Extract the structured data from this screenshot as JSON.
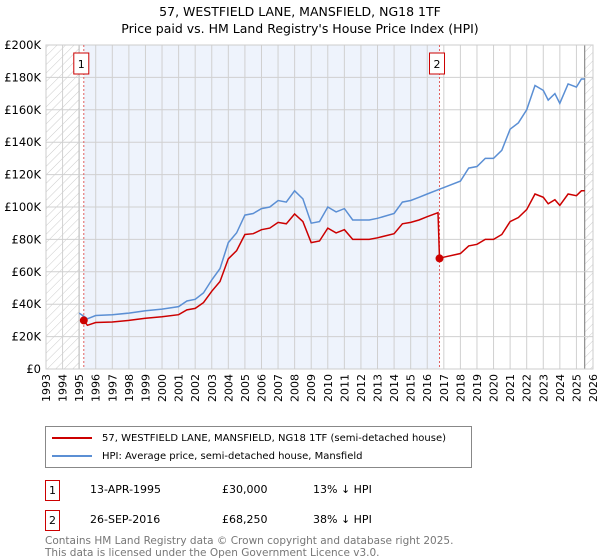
{
  "title": "57, WESTFIELD LANE, MANSFIELD, NG18 1TF",
  "subtitle": "Price paid vs. HM Land Registry's House Price Index (HPI)",
  "chart_data": {
    "type": "line",
    "title": "57, WESTFIELD LANE, MANSFIELD, NG18 1TF",
    "subtitle": "Price paid vs. HM Land Registry's House Price Index (HPI)",
    "xlim": [
      1993,
      2026
    ],
    "ylim": [
      0,
      200000
    ],
    "x_ticks": [
      "1993",
      "1994",
      "1995",
      "1996",
      "1997",
      "1998",
      "1999",
      "2000",
      "2001",
      "2002",
      "2003",
      "2004",
      "2005",
      "2006",
      "2007",
      "2008",
      "2009",
      "2010",
      "2011",
      "2012",
      "2013",
      "2014",
      "2015",
      "2016",
      "2017",
      "2018",
      "2019",
      "2020",
      "2021",
      "2022",
      "2023",
      "2024",
      "2025",
      "2026"
    ],
    "y_ticks": [
      {
        "v": 0,
        "label": "£0"
      },
      {
        "v": 20000,
        "label": "£20K"
      },
      {
        "v": 40000,
        "label": "£40K"
      },
      {
        "v": 60000,
        "label": "£60K"
      },
      {
        "v": 80000,
        "label": "£80K"
      },
      {
        "v": 100000,
        "label": "£100K"
      },
      {
        "v": 120000,
        "label": "£120K"
      },
      {
        "v": 140000,
        "label": "£140K"
      },
      {
        "v": 160000,
        "label": "£160K"
      },
      {
        "v": 180000,
        "label": "£180K"
      },
      {
        "v": 200000,
        "label": "£200K"
      }
    ],
    "grid": true,
    "legend_position": "below",
    "colors": {
      "price": "#cc0000",
      "hpi": "#5b8fd4",
      "shade": "#eef3fc"
    },
    "hatched_ranges": [
      [
        1993,
        1995.0
      ],
      [
        2025.5,
        2026
      ]
    ],
    "shaded_range": [
      1995.28,
      2016.74
    ],
    "series": [
      {
        "name": "57, WESTFIELD LANE, MANSFIELD, NG18 1TF (semi-detached house)",
        "color": "#cc0000",
        "points": [
          [
            1995.28,
            30000
          ],
          [
            1995.5,
            27000
          ],
          [
            1996,
            28700
          ],
          [
            1997,
            29000
          ],
          [
            1998,
            30000
          ],
          [
            1999,
            31300
          ],
          [
            2000,
            32200
          ],
          [
            2001,
            33500
          ],
          [
            2001.5,
            36500
          ],
          [
            2002,
            37400
          ],
          [
            2002.5,
            41000
          ],
          [
            2003,
            48000
          ],
          [
            2003.5,
            54000
          ],
          [
            2004,
            68000
          ],
          [
            2004.5,
            73000
          ],
          [
            2005,
            83000
          ],
          [
            2005.5,
            83500
          ],
          [
            2006,
            86000
          ],
          [
            2006.5,
            87000
          ],
          [
            2007,
            90500
          ],
          [
            2007.5,
            89600
          ],
          [
            2008,
            95700
          ],
          [
            2008.5,
            91000
          ],
          [
            2009,
            78000
          ],
          [
            2009.5,
            79000
          ],
          [
            2010,
            87000
          ],
          [
            2010.5,
            84000
          ],
          [
            2011,
            86000
          ],
          [
            2011.5,
            80000
          ],
          [
            2012,
            80000
          ],
          [
            2012.5,
            80000
          ],
          [
            2013,
            81000
          ],
          [
            2014,
            83500
          ],
          [
            2014.5,
            89600
          ],
          [
            2015,
            90500
          ],
          [
            2015.5,
            92000
          ],
          [
            2016,
            94000
          ],
          [
            2016.65,
            96500
          ],
          [
            2016.74,
            68250
          ],
          [
            2017,
            69000
          ],
          [
            2018,
            71300
          ],
          [
            2018.5,
            76000
          ],
          [
            2019,
            77000
          ],
          [
            2019.5,
            80000
          ],
          [
            2020,
            80000
          ],
          [
            2020.5,
            83000
          ],
          [
            2021,
            91000
          ],
          [
            2021.5,
            93500
          ],
          [
            2022,
            98400
          ],
          [
            2022.5,
            108000
          ],
          [
            2023,
            106000
          ],
          [
            2023.3,
            102000
          ],
          [
            2023.7,
            104500
          ],
          [
            2024,
            101000
          ],
          [
            2024.5,
            108000
          ],
          [
            2025,
            107000
          ],
          [
            2025.3,
            110000
          ],
          [
            2025.5,
            110000
          ]
        ]
      },
      {
        "name": "HPI: Average price, semi-detached house, Mansfield",
        "color": "#5b8fd4",
        "points": [
          [
            1995.0,
            34500
          ],
          [
            1995.5,
            31000
          ],
          [
            1996,
            33000
          ],
          [
            1997,
            33500
          ],
          [
            1998,
            34500
          ],
          [
            1999,
            36000
          ],
          [
            2000,
            37000
          ],
          [
            2001,
            38500
          ],
          [
            2001.5,
            42000
          ],
          [
            2002,
            43000
          ],
          [
            2002.5,
            47000
          ],
          [
            2003,
            55000
          ],
          [
            2003.5,
            62000
          ],
          [
            2004,
            78000
          ],
          [
            2004.5,
            84000
          ],
          [
            2005,
            95000
          ],
          [
            2005.5,
            96000
          ],
          [
            2006,
            99000
          ],
          [
            2006.5,
            100000
          ],
          [
            2007,
            104000
          ],
          [
            2007.5,
            103000
          ],
          [
            2008,
            110000
          ],
          [
            2008.5,
            105000
          ],
          [
            2009,
            90000
          ],
          [
            2009.5,
            91000
          ],
          [
            2010,
            100000
          ],
          [
            2010.5,
            97000
          ],
          [
            2011,
            99000
          ],
          [
            2011.5,
            92000
          ],
          [
            2012,
            92000
          ],
          [
            2012.5,
            92000
          ],
          [
            2013,
            93000
          ],
          [
            2014,
            96000
          ],
          [
            2014.5,
            103000
          ],
          [
            2015,
            104000
          ],
          [
            2015.5,
            106000
          ],
          [
            2016,
            108000
          ],
          [
            2016.74,
            111000
          ],
          [
            2017,
            112000
          ],
          [
            2018,
            116000
          ],
          [
            2018.5,
            124000
          ],
          [
            2019,
            125000
          ],
          [
            2019.5,
            130000
          ],
          [
            2020,
            130000
          ],
          [
            2020.5,
            135000
          ],
          [
            2021,
            148000
          ],
          [
            2021.5,
            152000
          ],
          [
            2022,
            160000
          ],
          [
            2022.5,
            175000
          ],
          [
            2023,
            172000
          ],
          [
            2023.3,
            166000
          ],
          [
            2023.7,
            170000
          ],
          [
            2024,
            164000
          ],
          [
            2024.5,
            176000
          ],
          [
            2025,
            174000
          ],
          [
            2025.3,
            179000
          ],
          [
            2025.5,
            179000
          ]
        ]
      }
    ],
    "sales": [
      {
        "label": "1",
        "x": 1995.28,
        "y": 30000
      },
      {
        "label": "2",
        "x": 2016.74,
        "y": 68250
      }
    ]
  },
  "legend": {
    "price_label": "57, WESTFIELD LANE, MANSFIELD, NG18 1TF (semi-detached house)",
    "hpi_label": "HPI: Average price, semi-detached house, Mansfield"
  },
  "transactions": [
    {
      "num": "1",
      "date": "13-APR-1995",
      "price": "£30,000",
      "hpi": "13% ↓ HPI"
    },
    {
      "num": "2",
      "date": "26-SEP-2016",
      "price": "£68,250",
      "hpi": "38% ↓ HPI"
    }
  ],
  "footer": {
    "line1": "Contains HM Land Registry data © Crown copyright and database right 2025.",
    "line2": "This data is licensed under the Open Government Licence v3.0."
  }
}
